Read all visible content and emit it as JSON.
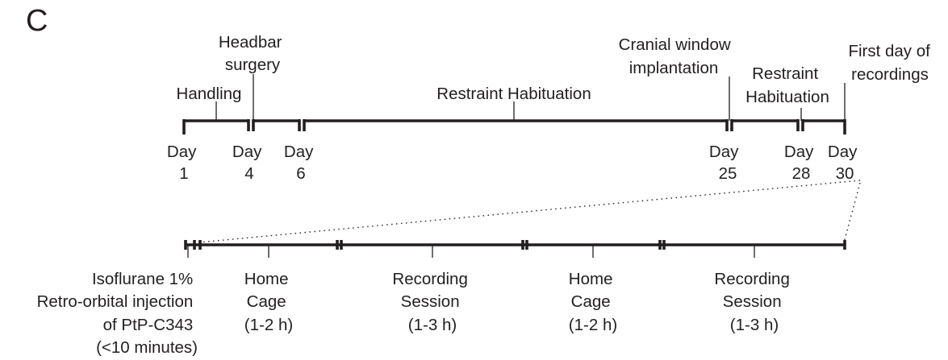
{
  "panel_label": "C",
  "timeline": {
    "events": {
      "handling": "Handling",
      "headbar": [
        "Headbar",
        "surgery"
      ],
      "restraint1": "Restraint Habituation",
      "cranial": [
        "Cranial window",
        "implantation"
      ],
      "restraint2": [
        "Restraint",
        "Habituation"
      ],
      "first_day": [
        "First day of",
        "recordings"
      ]
    },
    "days": {
      "d1": [
        "Day",
        "1"
      ],
      "d4": [
        "Day",
        "4"
      ],
      "d6": [
        "Day",
        "6"
      ],
      "d25": [
        "Day",
        "25"
      ],
      "d28": [
        "Day",
        "28"
      ],
      "d30": [
        "Day",
        "30"
      ]
    }
  },
  "session": {
    "isoflurane": [
      "Isoflurane 1%",
      "Retro-orbital injection",
      "of PtP-C343",
      "(<10 minutes)"
    ],
    "home1": [
      "Home",
      "Cage",
      "(1-2 h)"
    ],
    "rec1": [
      "Recording",
      "Session",
      "(1-3 h)"
    ],
    "home2": [
      "Home",
      "Cage",
      "(1-2 h)"
    ],
    "rec2": [
      "Recording",
      "Session",
      "(1-3 h)"
    ]
  }
}
